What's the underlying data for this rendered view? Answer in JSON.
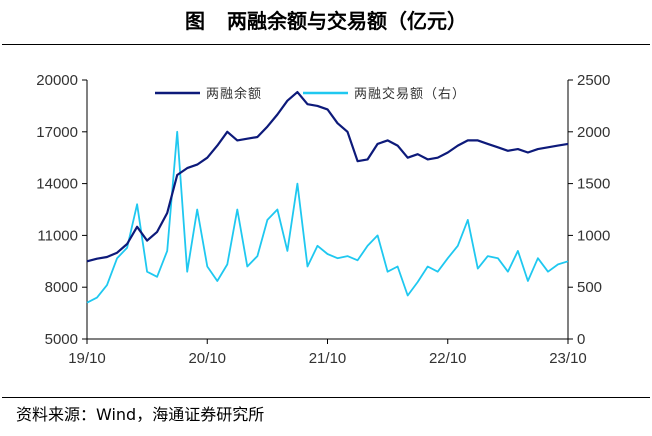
{
  "figure": {
    "label": "图",
    "title": "两融余额与交易额（亿元）",
    "source": "资料来源：Wind，海通证券研究所"
  },
  "colors": {
    "balance": "#0d1a7a",
    "turnover": "#1fc8f0",
    "axis": "#000000",
    "text": "#333333"
  },
  "chart_data": {
    "type": "line",
    "title": "两融余额与交易额（亿元）",
    "xlabel": "",
    "ylabel": "",
    "x_ticks": [
      "19/10",
      "20/10",
      "21/10",
      "22/10",
      "23/10"
    ],
    "x_range": [
      0,
      48
    ],
    "left_axis": {
      "ticks": [
        5000,
        8000,
        11000,
        14000,
        17000,
        20000
      ],
      "ylim": [
        5000,
        20000
      ]
    },
    "right_axis": {
      "ticks": [
        0,
        500,
        1000,
        1500,
        2000,
        2500
      ],
      "ylim": [
        0,
        2500
      ]
    },
    "grid": false,
    "legend_position": "top-center",
    "series": [
      {
        "name": "两融余额",
        "axis": "left",
        "color": "#0d1a7a",
        "x": [
          0,
          1,
          2,
          3,
          4,
          5,
          6,
          7,
          8,
          9,
          10,
          11,
          12,
          13,
          14,
          15,
          16,
          17,
          18,
          19,
          20,
          21,
          22,
          23,
          24,
          25,
          26,
          27,
          28,
          29,
          30,
          31,
          32,
          33,
          34,
          35,
          36,
          37,
          38,
          39,
          40,
          41,
          42,
          43,
          44,
          45,
          46,
          47,
          48
        ],
        "values": [
          9500,
          9650,
          9750,
          10000,
          10500,
          11500,
          10700,
          11200,
          12300,
          14500,
          14900,
          15100,
          15500,
          16200,
          17000,
          16500,
          16600,
          16700,
          17300,
          18000,
          18800,
          19300,
          18600,
          18500,
          18300,
          17500,
          17000,
          15300,
          15400,
          16300,
          16500,
          16200,
          15500,
          15700,
          15400,
          15500,
          15800,
          16200,
          16500,
          16500,
          16300,
          16100,
          15900,
          16000,
          15800,
          16000,
          16100,
          16200,
          16300
        ]
      },
      {
        "name": "两融交易额（右）",
        "axis": "right",
        "color": "#1fc8f0",
        "x": [
          0,
          1,
          2,
          3,
          4,
          5,
          6,
          7,
          8,
          9,
          10,
          11,
          12,
          13,
          14,
          15,
          16,
          17,
          18,
          19,
          20,
          21,
          22,
          23,
          24,
          25,
          26,
          27,
          28,
          29,
          30,
          31,
          32,
          33,
          34,
          35,
          36,
          37,
          38,
          39,
          40,
          41,
          42,
          43,
          44,
          45,
          46,
          47,
          48
        ],
        "values": [
          350,
          400,
          520,
          780,
          880,
          1300,
          650,
          600,
          850,
          2000,
          650,
          1250,
          700,
          560,
          720,
          1250,
          700,
          800,
          1150,
          1250,
          850,
          1500,
          700,
          900,
          820,
          780,
          800,
          760,
          900,
          1000,
          650,
          700,
          420,
          550,
          700,
          650,
          780,
          900,
          1150,
          680,
          800,
          780,
          650,
          850,
          560,
          780,
          650,
          720,
          750
        ]
      }
    ]
  }
}
